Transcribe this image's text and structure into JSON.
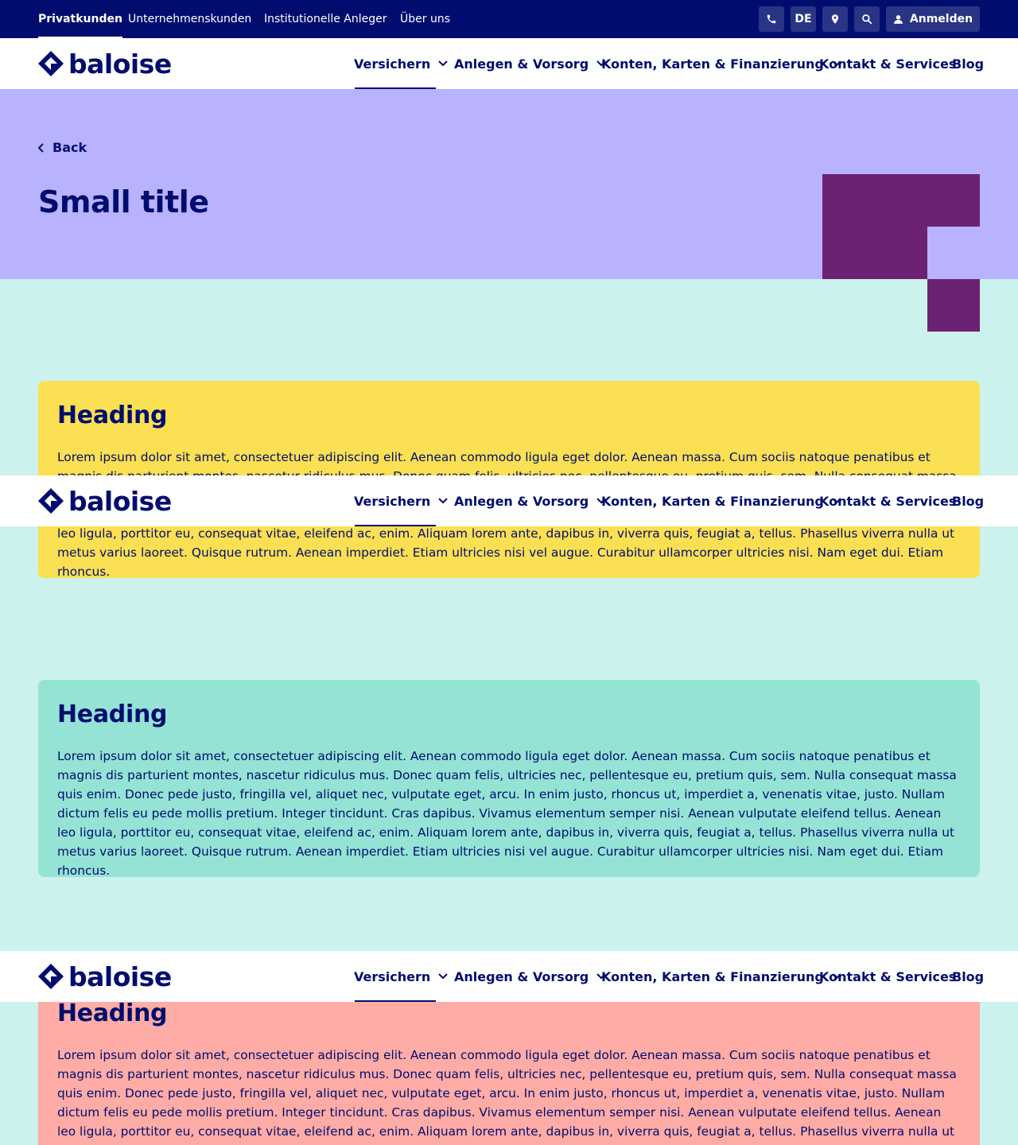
{
  "topbar": {
    "segments": [
      "Privatkunden",
      "Unternehmenskunden",
      "Institutionelle Anleger",
      "Über uns"
    ],
    "language": "DE",
    "login_label": "Anmelden",
    "icons": [
      "phone-icon",
      "map-pin-icon",
      "search-icon",
      "user-icon"
    ]
  },
  "nav": {
    "logo_text": "baloise",
    "items": [
      "Versichern",
      "Anlegen & Vorsorg",
      "Konten, Karten & Finanzierung",
      "Kontakt & Services",
      "Blog"
    ]
  },
  "hero": {
    "back_label": "Back",
    "title": "Small title"
  },
  "cards": [
    {
      "heading": "Heading",
      "text": "Lorem ipsum dolor sit amet, consectetuer adipiscing elit. Aenean commodo ligula eget dolor. Aenean massa. Cum sociis natoque penatibus et magnis dis parturient montes, nascetur ridiculus mus. Donec quam felis, ultricies nec, pellentesque eu, pretium quis, sem. Nulla consequat massa quis enim. Donec pede justo, fringilla vel, aliquet nec, vulputate eget, arcu. In enim justo, rhoncus ut, imperdiet a, venenatis vitae, justo. Nullam dictum felis eu pede mollis pretium. Integer tincidunt. Cras dapibus. Vivamus elementum semper nisi. Aenean vulputate eleifend tellus. Aenean leo ligula, porttitor eu, consequat vitae, eleifend ac, enim. Aliquam lorem ante, dapibus in, viverra quis, feugiat a, tellus. Phasellus viverra nulla ut metus varius laoreet. Quisque rutrum. Aenean imperdiet. Etiam ultricies nisi vel augue. Curabitur ullamcorper ultricies nisi. Nam eget dui. Etiam rhoncus.",
      "color": "#fae052"
    },
    {
      "heading": "Heading",
      "text": "Lorem ipsum dolor sit amet, consectetuer adipiscing elit. Aenean commodo ligula eget dolor. Aenean massa. Cum sociis natoque penatibus et magnis dis parturient montes, nascetur ridiculus mus. Donec quam felis, ultricies nec, pellentesque eu, pretium quis, sem. Nulla consequat massa quis enim. Donec pede justo, fringilla vel, aliquet nec, vulputate eget, arcu. In enim justo, rhoncus ut, imperdiet a, venenatis vitae, justo. Nullam dictum felis eu pede mollis pretium. Integer tincidunt. Cras dapibus. Vivamus elementum semper nisi. Aenean vulputate eleifend tellus. Aenean leo ligula, porttitor eu, consequat vitae, eleifend ac, enim. Aliquam lorem ante, dapibus in, viverra quis, feugiat a, tellus. Phasellus viverra nulla ut metus varius laoreet. Quisque rutrum. Aenean imperdiet. Etiam ultricies nisi vel augue. Curabitur ullamcorper ultricies nisi. Nam eget dui. Etiam rhoncus.",
      "color": "#94e3d4"
    },
    {
      "heading": "Heading",
      "text": "Lorem ipsum dolor sit amet, consectetuer adipiscing elit. Aenean commodo ligula eget dolor. Aenean massa. Cum sociis natoque penatibus et magnis dis parturient montes, nascetur ridiculus mus. Donec quam felis, ultricies nec, pellentesque eu, pretium quis, sem. Nulla consequat massa quis enim. Donec pede justo, fringilla vel, aliquet nec, vulputate eget, arcu. In enim justo, rhoncus ut, imperdiet a, venenatis vitae, justo. Nullam dictum felis eu pede mollis pretium. Integer tincidunt. Cras dapibus. Vivamus elementum semper nisi. Aenean vulputate eleifend tellus. Aenean leo ligula, porttitor eu, consequat vitae, eleifend ac, enim. Aliquam lorem ante, dapibus in, viverra quis, feugiat a, tellus. Phasellus viverra nulla ut metus varius laoreet. Quisque rutrum. Aenean imperdiet. Etiam ultricies nisi vel augue. Curabitur ullamcorper ultricies nisi. Nam eget dui. Etiam rhoncus.",
      "color": "#ffaca6"
    }
  ],
  "colors": {
    "primary": "#000d6e",
    "topbar_button": "#293485",
    "hero_bg": "#b8b2ff",
    "hero_shape": "#6c2273",
    "page_bg": "#cbf2ec"
  }
}
